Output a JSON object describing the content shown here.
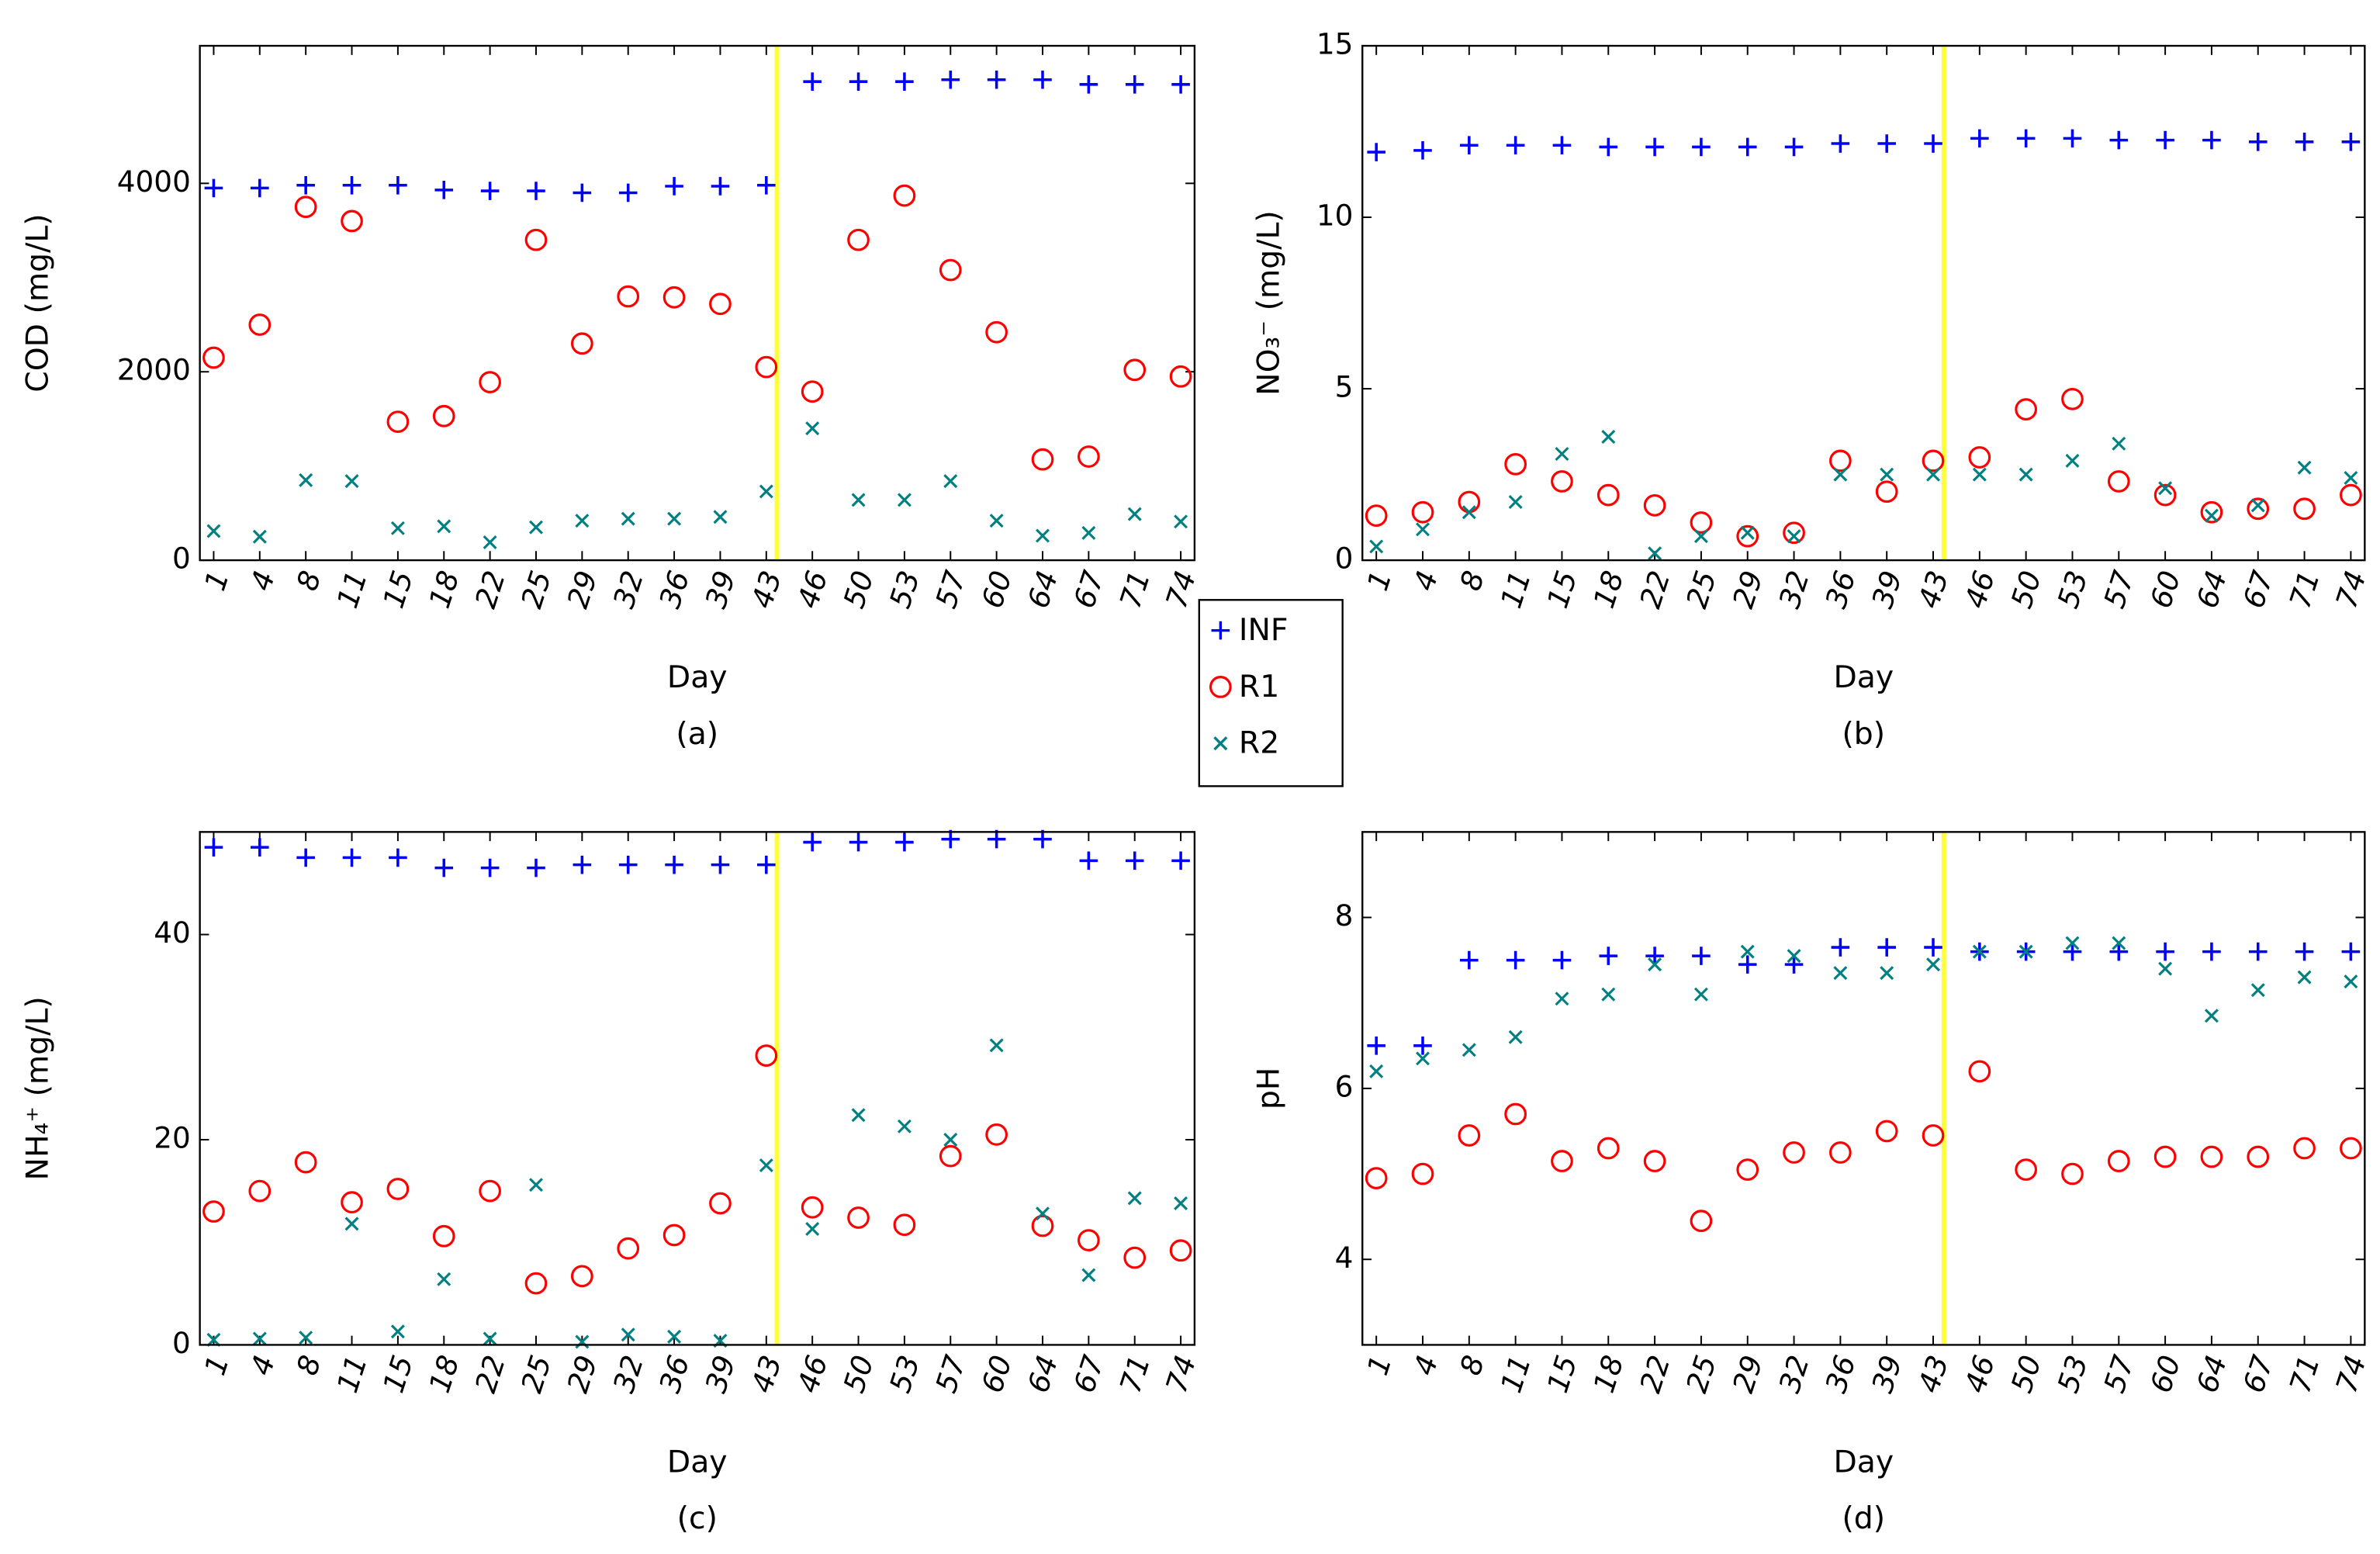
{
  "chart_data": [
    {
      "type": "scatter",
      "caption": "(a)",
      "xlabel": "Day",
      "ylabel": "COD (mg/L)",
      "categories": [
        "1",
        "4",
        "8",
        "11",
        "15",
        "18",
        "22",
        "25",
        "29",
        "32",
        "36",
        "39",
        "43",
        "46",
        "50",
        "53",
        "57",
        "60",
        "64",
        "67",
        "71",
        "74"
      ],
      "ylim": [
        0,
        5460
      ],
      "yticks": [
        0,
        2000,
        4000
      ],
      "vline": "43",
      "vline_color": "#ffff33",
      "series": [
        {
          "name": "INF",
          "color": "#0000ff",
          "marker": "plus",
          "values": [
            3950,
            3950,
            3980,
            3980,
            3980,
            3930,
            3920,
            3920,
            3900,
            3900,
            3970,
            3970,
            3980,
            5080,
            5080,
            5080,
            5100,
            5100,
            5100,
            5050,
            5050,
            5050
          ]
        },
        {
          "name": "R1",
          "color": "#ff0000",
          "marker": "circle",
          "values": [
            2150,
            2500,
            3750,
            3600,
            1470,
            1530,
            1890,
            3400,
            2300,
            2800,
            2790,
            2720,
            2050,
            1790,
            3400,
            3870,
            3080,
            2420,
            1070,
            1100,
            2020,
            1950
          ]
        },
        {
          "name": "R2",
          "color": "#008080",
          "marker": "cross",
          "values": [
            310,
            250,
            850,
            840,
            340,
            360,
            190,
            350,
            420,
            440,
            440,
            460,
            730,
            1400,
            640,
            640,
            840,
            420,
            260,
            290,
            490,
            410
          ]
        }
      ]
    },
    {
      "type": "scatter",
      "caption": "(b)",
      "xlabel": "Day",
      "ylabel": "NO₃⁻ (mg/L)",
      "categories": [
        "1",
        "4",
        "8",
        "11",
        "15",
        "18",
        "22",
        "25",
        "29",
        "32",
        "36",
        "39",
        "43",
        "46",
        "50",
        "53",
        "57",
        "60",
        "64",
        "67",
        "71",
        "74"
      ],
      "ylim": [
        0,
        15
      ],
      "yticks": [
        0,
        5,
        10,
        15
      ],
      "vline": "43",
      "vline_color": "#ffff33",
      "series": [
        {
          "name": "INF",
          "color": "#0000ff",
          "marker": "plus",
          "values": [
            11.9,
            11.95,
            12.1,
            12.1,
            12.1,
            12.05,
            12.05,
            12.05,
            12.05,
            12.05,
            12.15,
            12.15,
            12.15,
            12.3,
            12.3,
            12.3,
            12.25,
            12.25,
            12.25,
            12.2,
            12.2,
            12.2
          ]
        },
        {
          "name": "R1",
          "color": "#ff0000",
          "marker": "circle",
          "values": [
            1.3,
            1.4,
            1.7,
            2.8,
            2.3,
            1.9,
            1.6,
            1.1,
            0.7,
            0.8,
            2.9,
            2.0,
            2.9,
            3.0,
            4.4,
            4.7,
            2.3,
            1.9,
            1.4,
            1.5,
            1.5,
            1.9
          ]
        },
        {
          "name": "R2",
          "color": "#008080",
          "marker": "cross",
          "values": [
            0.4,
            0.9,
            1.4,
            1.7,
            3.1,
            3.6,
            0.2,
            0.7,
            0.8,
            0.7,
            2.5,
            2.5,
            2.5,
            2.5,
            2.5,
            2.9,
            3.4,
            2.1,
            1.3,
            1.6,
            2.7,
            2.4
          ]
        }
      ]
    },
    {
      "type": "scatter",
      "caption": "(c)",
      "xlabel": "Day",
      "ylabel": "NH₄⁺ (mg/L)",
      "categories": [
        "1",
        "4",
        "8",
        "11",
        "15",
        "18",
        "22",
        "25",
        "29",
        "32",
        "36",
        "39",
        "43",
        "46",
        "50",
        "53",
        "57",
        "60",
        "64",
        "67",
        "71",
        "74"
      ],
      "ylim": [
        0,
        50
      ],
      "yticks": [
        0,
        20,
        40
      ],
      "vline": "43",
      "vline_color": "#ffff33",
      "series": [
        {
          "name": "INF",
          "color": "#0000ff",
          "marker": "plus",
          "values": [
            48.5,
            48.5,
            47.5,
            47.5,
            47.5,
            46.5,
            46.5,
            46.5,
            46.8,
            46.8,
            46.8,
            46.8,
            46.8,
            49,
            49,
            49,
            49.3,
            49.3,
            49.3,
            47.2,
            47.2,
            47.2
          ]
        },
        {
          "name": "R1",
          "color": "#ff0000",
          "marker": "circle",
          "values": [
            13,
            15,
            17.8,
            13.9,
            15.2,
            10.6,
            15,
            6,
            6.7,
            9.4,
            10.7,
            13.8,
            28.2,
            13.4,
            12.4,
            11.7,
            18.4,
            20.5,
            11.6,
            10.2,
            8.5,
            9.2
          ]
        },
        {
          "name": "R2",
          "color": "#008080",
          "marker": "cross",
          "values": [
            0.5,
            0.6,
            0.7,
            11.8,
            1.3,
            6.4,
            0.6,
            15.6,
            0.3,
            1,
            0.8,
            0.4,
            17.5,
            11.3,
            22.4,
            21.3,
            20,
            29.2,
            12.8,
            6.8,
            14.3,
            13.8
          ]
        }
      ]
    },
    {
      "type": "scatter",
      "caption": "(d)",
      "xlabel": "Day",
      "ylabel": "pH",
      "categories": [
        "1",
        "4",
        "8",
        "11",
        "15",
        "18",
        "22",
        "25",
        "29",
        "32",
        "36",
        "39",
        "43",
        "46",
        "50",
        "53",
        "57",
        "60",
        "64",
        "67",
        "71",
        "74"
      ],
      "ylim": [
        3,
        9
      ],
      "yticks": [
        4,
        6,
        8
      ],
      "vline": "43",
      "vline_color": "#ffff33",
      "series": [
        {
          "name": "INF",
          "color": "#0000ff",
          "marker": "plus",
          "values": [
            6.5,
            6.5,
            7.5,
            7.5,
            7.5,
            7.55,
            7.55,
            7.55,
            7.45,
            7.45,
            7.65,
            7.65,
            7.65,
            7.6,
            7.6,
            7.6,
            7.6,
            7.6,
            7.6,
            7.6,
            7.6,
            7.6
          ]
        },
        {
          "name": "R1",
          "color": "#ff0000",
          "marker": "circle",
          "values": [
            4.95,
            5.0,
            5.45,
            5.7,
            5.15,
            5.3,
            5.15,
            4.45,
            5.05,
            5.25,
            5.25,
            5.5,
            5.45,
            6.2,
            5.05,
            5.0,
            5.15,
            5.2,
            5.2,
            5.2,
            5.3,
            5.3
          ]
        },
        {
          "name": "R2",
          "color": "#008080",
          "marker": "cross",
          "values": [
            6.2,
            6.35,
            6.45,
            6.6,
            7.05,
            7.1,
            7.45,
            7.1,
            7.6,
            7.55,
            7.35,
            7.35,
            7.45,
            7.6,
            7.6,
            7.7,
            7.7,
            7.4,
            6.85,
            7.15,
            7.3,
            7.25
          ]
        }
      ]
    }
  ]
}
